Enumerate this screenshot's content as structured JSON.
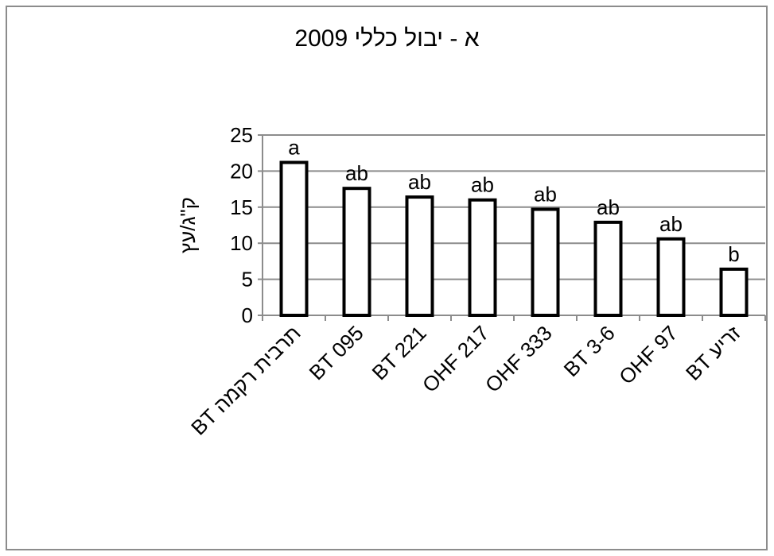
{
  "chart_data": {
    "type": "bar",
    "title": "א - יבול כללי 2009",
    "xlabel": "",
    "ylabel": "ק\"ג/עץ",
    "ylim": [
      0,
      25
    ],
    "yticks": [
      0,
      5,
      10,
      15,
      20,
      25
    ],
    "grid": true,
    "categories": [
      "BT תרבית רקמה",
      "BT 095",
      "BT 221",
      "OHF 217",
      "OHF 333",
      "BT 3-6",
      "OHF 97",
      "BT זריע"
    ],
    "series": [
      {
        "values": [
          21.2,
          17.6,
          16.4,
          16.0,
          14.7,
          12.9,
          10.6,
          6.4
        ],
        "labels": [
          "a",
          "ab",
          "ab",
          "ab",
          "ab",
          "ab",
          "ab",
          "b"
        ]
      }
    ],
    "colors": {
      "bar_fill": "#ffffff",
      "bar_stroke": "#000000",
      "grid": "#8c8c8c",
      "axis": "#8c8c8c"
    }
  }
}
